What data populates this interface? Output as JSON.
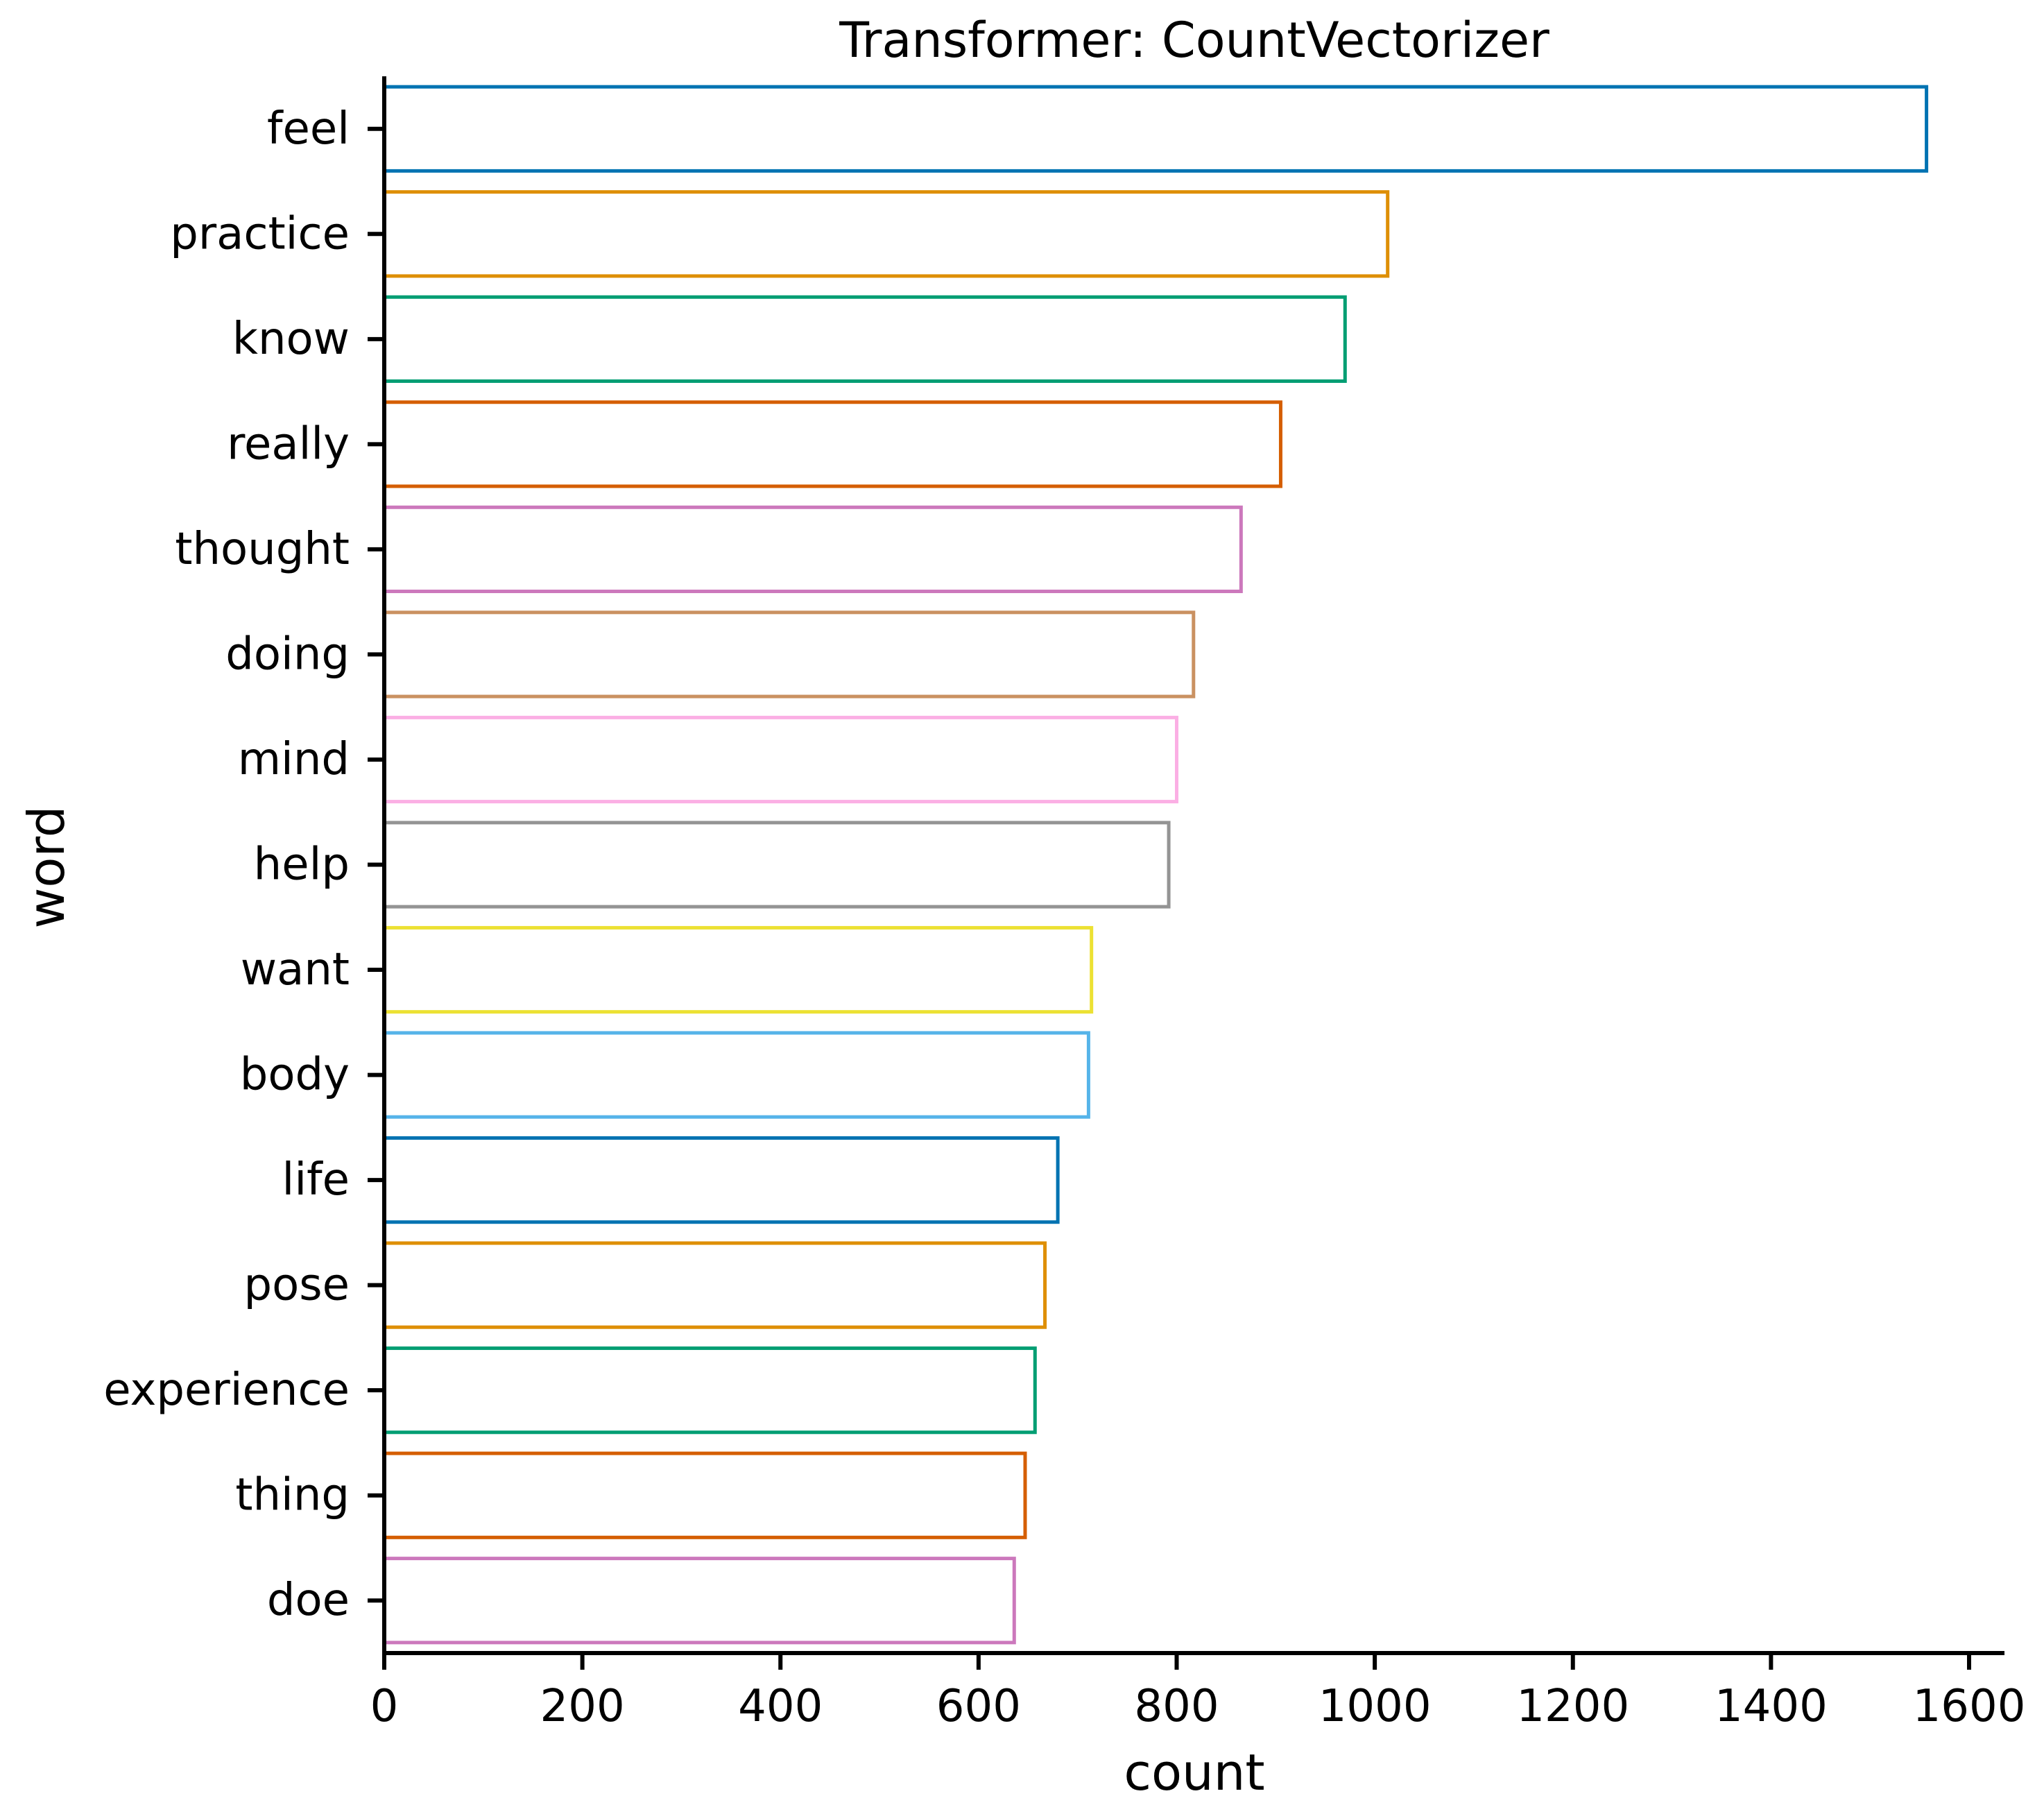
{
  "chart_data": {
    "type": "bar",
    "orientation": "horizontal",
    "title": "Transformer: CountVectorizer",
    "xlabel": "count",
    "ylabel": "word",
    "categories": [
      "feel",
      "practice",
      "know",
      "really",
      "thought",
      "doing",
      "mind",
      "help",
      "want",
      "body",
      "life",
      "pose",
      "experience",
      "thing",
      "doe"
    ],
    "values": [
      1557,
      1013,
      970,
      905,
      865,
      817,
      800,
      792,
      714,
      711,
      680,
      667,
      657,
      647,
      636
    ],
    "xlim": [
      0,
      1620
    ],
    "xticks": [
      0,
      200,
      400,
      600,
      800,
      1000,
      1200,
      1400,
      1600
    ],
    "grid": false,
    "bar_fill": "none",
    "colors": [
      "#0173b2",
      "#de8f05",
      "#029e73",
      "#d55e00",
      "#cc78bc",
      "#ca9161",
      "#fbafe4",
      "#949494",
      "#ece133",
      "#56b4e9",
      "#0173b2",
      "#de8f05",
      "#029e73",
      "#d55e00",
      "#cc78bc"
    ]
  }
}
